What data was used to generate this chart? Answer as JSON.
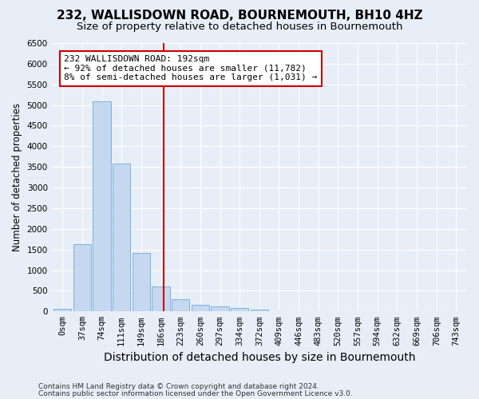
{
  "title": "232, WALLISDOWN ROAD, BOURNEMOUTH, BH10 4HZ",
  "subtitle": "Size of property relative to detached houses in Bournemouth",
  "xlabel": "Distribution of detached houses by size in Bournemouth",
  "ylabel": "Number of detached properties",
  "bar_labels": [
    "0sqm",
    "37sqm",
    "74sqm",
    "111sqm",
    "149sqm",
    "186sqm",
    "223sqm",
    "260sqm",
    "297sqm",
    "334sqm",
    "372sqm",
    "409sqm",
    "446sqm",
    "483sqm",
    "520sqm",
    "557sqm",
    "594sqm",
    "632sqm",
    "669sqm",
    "706sqm",
    "743sqm"
  ],
  "bar_values": [
    60,
    1630,
    5080,
    3580,
    1420,
    600,
    290,
    155,
    120,
    85,
    40,
    5,
    0,
    0,
    0,
    0,
    0,
    0,
    0,
    0,
    0
  ],
  "bar_color": "#c5d8f0",
  "bar_edgecolor": "#6aaad4",
  "vline_x": 5.14,
  "vline_color": "#cc0000",
  "annotation_text": "232 WALLISDOWN ROAD: 192sqm\n← 92% of detached houses are smaller (11,782)\n8% of semi-detached houses are larger (1,031) →",
  "annotation_box_color": "#ffffff",
  "annotation_box_edgecolor": "#cc0000",
  "ylim": [
    0,
    6500
  ],
  "yticks": [
    0,
    500,
    1000,
    1500,
    2000,
    2500,
    3000,
    3500,
    4000,
    4500,
    5000,
    5500,
    6000,
    6500
  ],
  "footnote1": "Contains HM Land Registry data © Crown copyright and database right 2024.",
  "footnote2": "Contains public sector information licensed under the Open Government Licence v3.0.",
  "bg_color": "#e8eef7",
  "plot_bg_color": "#e8eef7",
  "title_fontsize": 11,
  "subtitle_fontsize": 9.5,
  "xlabel_fontsize": 10,
  "ylabel_fontsize": 8.5,
  "tick_fontsize": 7.5,
  "annotation_fontsize": 8,
  "footnote_fontsize": 6.5
}
